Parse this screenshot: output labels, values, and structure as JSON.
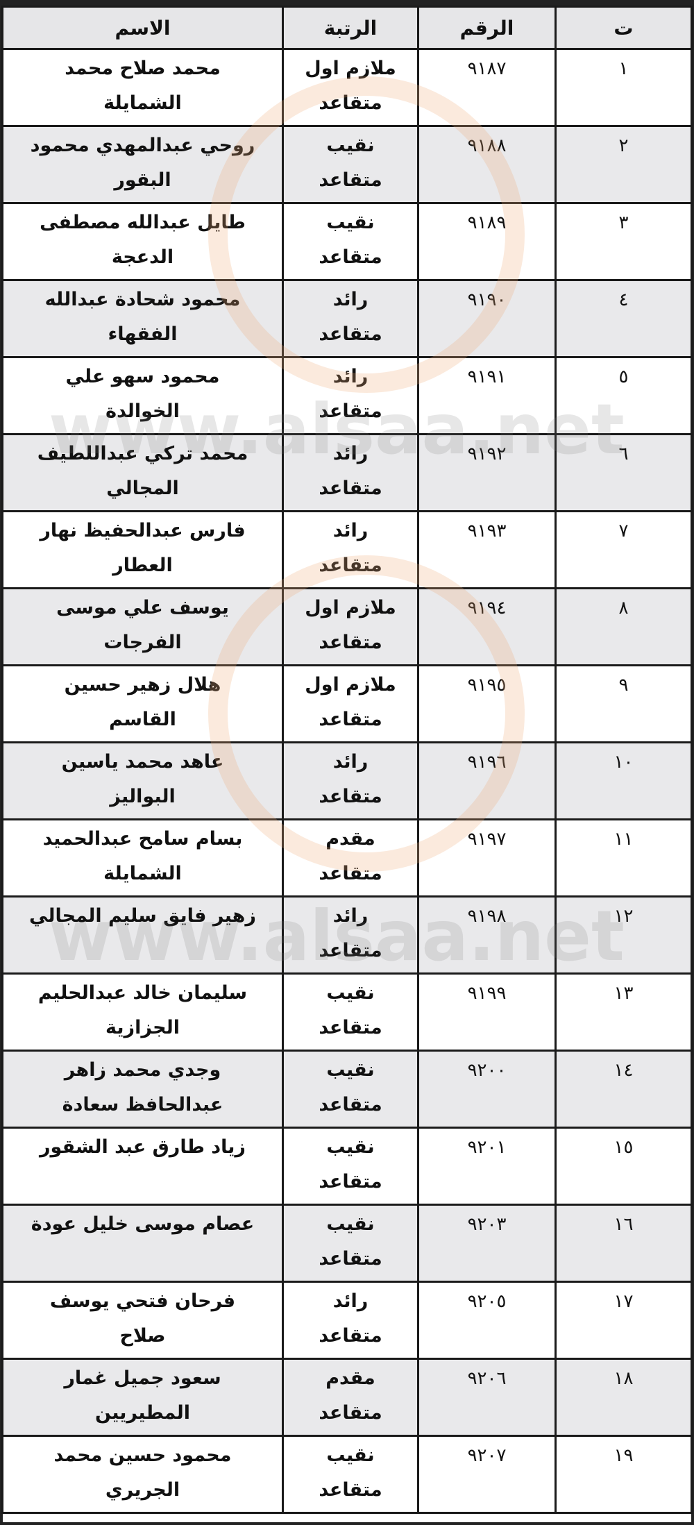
{
  "table": {
    "headers": {
      "index": "ت",
      "number": "الرقم",
      "rank": "الرتبة",
      "name": "الاسم"
    },
    "rows": [
      {
        "index": "١",
        "number": "٩١٨٧",
        "rank": [
          "ملازم اول",
          "متقاعد"
        ],
        "name": [
          "محمد صلاح محمد",
          "الشمايلة"
        ]
      },
      {
        "index": "٢",
        "number": "٩١٨٨",
        "rank": [
          "نقيب",
          "متقاعد"
        ],
        "name": [
          "روحي عبدالمهدي محمود",
          "البقور"
        ]
      },
      {
        "index": "٣",
        "number": "٩١٨٩",
        "rank": [
          "نقيب",
          "متقاعد"
        ],
        "name": [
          "طايل عبدالله مصطفى",
          "الدعجة"
        ]
      },
      {
        "index": "٤",
        "number": "٩١٩٠",
        "rank": [
          "رائد",
          "متقاعد"
        ],
        "name": [
          "محمود شحادة عبدالله",
          "الفقهاء"
        ]
      },
      {
        "index": "٥",
        "number": "٩١٩١",
        "rank": [
          "رائد",
          "متقاعد"
        ],
        "name": [
          "محمود سهو علي",
          "الخوالدة"
        ]
      },
      {
        "index": "٦",
        "number": "٩١٩٢",
        "rank": [
          "رائد",
          "متقاعد"
        ],
        "name": [
          "محمد تركي عبداللطيف",
          "المجالي"
        ]
      },
      {
        "index": "٧",
        "number": "٩١٩٣",
        "rank": [
          "رائد",
          "متقاعد"
        ],
        "name": [
          "فارس عبدالحفيظ نهار",
          "العطار"
        ]
      },
      {
        "index": "٨",
        "number": "٩١٩٤",
        "rank": [
          "ملازم اول",
          "متقاعد"
        ],
        "name": [
          "يوسف علي موسى",
          "الفرجات"
        ]
      },
      {
        "index": "٩",
        "number": "٩١٩٥",
        "rank": [
          "ملازم اول",
          "متقاعد"
        ],
        "name": [
          "هلال زهير حسين",
          "القاسم"
        ]
      },
      {
        "index": "١٠",
        "number": "٩١٩٦",
        "rank": [
          "رائد",
          "متقاعد"
        ],
        "name": [
          "عاهد محمد ياسين",
          "البواليز"
        ]
      },
      {
        "index": "١١",
        "number": "٩١٩٧",
        "rank": [
          "مقدم",
          "متقاعد"
        ],
        "name": [
          "بسام سامح عبدالحميد",
          "الشمايلة"
        ]
      },
      {
        "index": "١٢",
        "number": "٩١٩٨",
        "rank": [
          "رائد",
          "متقاعد"
        ],
        "name": [
          "زهير فايق سليم المجالي",
          ""
        ]
      },
      {
        "index": "١٣",
        "number": "٩١٩٩",
        "rank": [
          "نقيب",
          "متقاعد"
        ],
        "name": [
          "سليمان خالد عبدالحليم",
          "الجزازية"
        ]
      },
      {
        "index": "١٤",
        "number": "٩٢٠٠",
        "rank": [
          "نقيب",
          "متقاعد"
        ],
        "name": [
          "وجدي محمد زاهر",
          "عبدالحافظ سعادة"
        ]
      },
      {
        "index": "١٥",
        "number": "٩٢٠١",
        "rank": [
          "نقيب",
          "متقاعد"
        ],
        "name": [
          "زياد طارق عبد الشقور",
          ""
        ]
      },
      {
        "index": "١٦",
        "number": "٩٢٠٣",
        "rank": [
          "نقيب",
          "متقاعد"
        ],
        "name": [
          "عصام موسى خليل عودة",
          ""
        ]
      },
      {
        "index": "١٧",
        "number": "٩٢٠٥",
        "rank": [
          "رائد",
          "متقاعد"
        ],
        "name": [
          "فرحان فتحي يوسف",
          "صلاح"
        ]
      },
      {
        "index": "١٨",
        "number": "٩٢٠٦",
        "rank": [
          "مقدم",
          "متقاعد"
        ],
        "name": [
          "سعود جميل غمار",
          "المطيريين"
        ]
      },
      {
        "index": "١٩",
        "number": "٩٢٠٧",
        "rank": [
          "نقيب",
          "متقاعد"
        ],
        "name": [
          "محمود حسين محمد",
          "الجريري"
        ]
      }
    ]
  },
  "watermark": {
    "text": "www.alsaa.net",
    "colors": {
      "ring": "#f0aa78",
      "text": "#787878"
    }
  }
}
